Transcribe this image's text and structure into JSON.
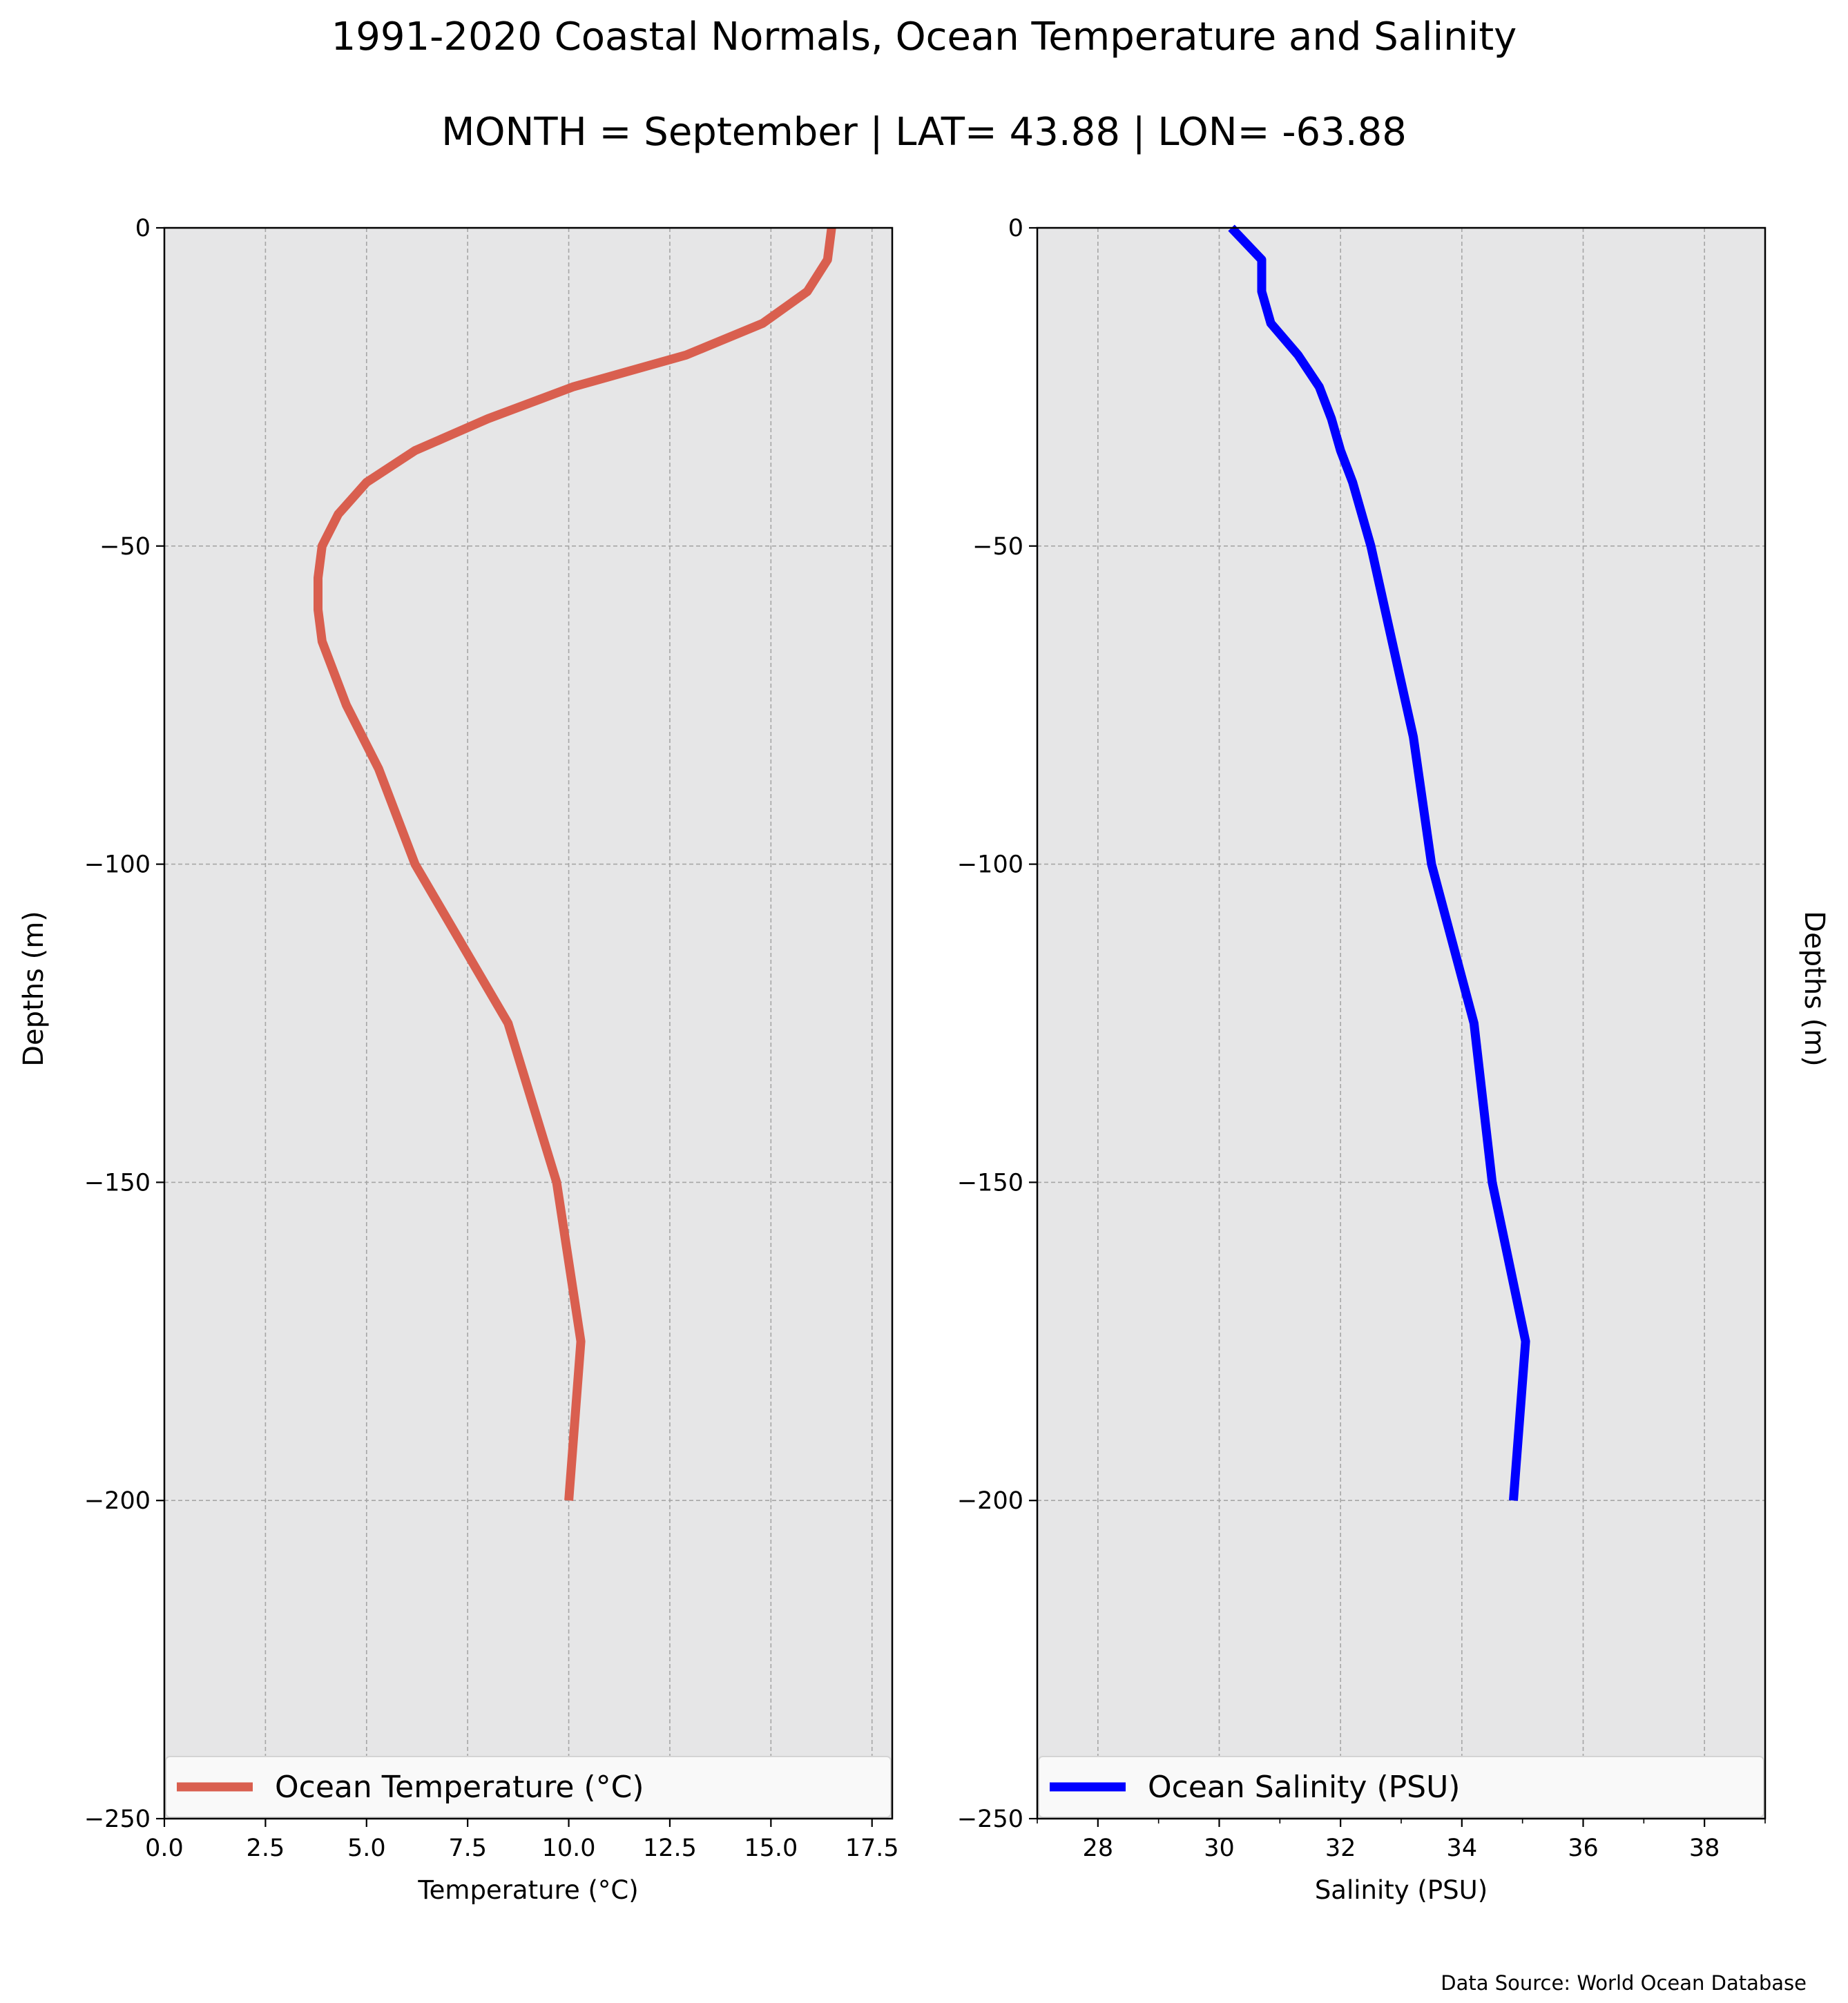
{
  "figure": {
    "title": "1991-2020 Coastal Normals, Ocean Temperature and Salinity",
    "subtitle": "MONTH = September | LAT= 43.88 | LON= -63.88",
    "source_note": "Data Source: World Ocean Database",
    "colors": {
      "panel_bg": "#e6e6e7",
      "grid": "#a6a6a6"
    }
  },
  "chart_data": [
    {
      "type": "line",
      "xlabel": "Temperature ($^\\circ$C)",
      "xlabel_display": "Temperature (°C)",
      "ylabel": "Depths (m)",
      "xlim": [
        0,
        18
      ],
      "ylim": [
        -250,
        0
      ],
      "xticks": [
        0.0,
        2.5,
        5.0,
        7.5,
        10.0,
        12.5,
        15.0,
        17.5
      ],
      "xtick_labels": [
        "0.0",
        "2.5",
        "5.0",
        "7.5",
        "10.0",
        "12.5",
        "15.0",
        "17.5"
      ],
      "yticks": [
        0,
        -50,
        -100,
        -150,
        -200,
        -250
      ],
      "ytick_labels": [
        "0",
        "−50",
        "−100",
        "−150",
        "−200",
        "−250"
      ],
      "grid": true,
      "legend": "bottom",
      "series": [
        {
          "name": "Ocean Temperature (°C)",
          "color": "#d95f4f",
          "x": [
            16.5,
            16.4,
            15.9,
            14.8,
            12.9,
            10.1,
            8.0,
            6.2,
            5.0,
            4.3,
            3.9,
            3.8,
            3.8,
            3.9,
            4.5,
            5.3,
            6.2,
            8.5,
            9.7,
            10.3,
            10.0
          ],
          "y": [
            0,
            -5,
            -10,
            -15,
            -20,
            -25,
            -30,
            -35,
            -40,
            -45,
            -50,
            -55,
            -60,
            -65,
            -75,
            -85,
            -100,
            -125,
            -150,
            -175,
            -200
          ]
        }
      ]
    },
    {
      "type": "line",
      "xlabel": "Salinity (PSU)",
      "ylabel": "Depths (m)",
      "xlim": [
        27,
        39
      ],
      "ylim": [
        -250,
        0
      ],
      "xticks": [
        28,
        30,
        32,
        34,
        36,
        38
      ],
      "xtick_labels": [
        "28",
        "30",
        "32",
        "34",
        "36",
        "38"
      ],
      "yticks": [
        0,
        -50,
        -100,
        -150,
        -200,
        -250
      ],
      "ytick_labels": [
        "0",
        "−50",
        "−100",
        "−150",
        "−200",
        "−250"
      ],
      "grid": true,
      "legend": "bottom",
      "series": [
        {
          "name": "Ocean Salinity (PSU)",
          "color": "#0000ff",
          "x": [
            30.2,
            30.7,
            30.7,
            30.85,
            31.3,
            31.65,
            31.85,
            32.0,
            32.2,
            32.35,
            32.5,
            32.85,
            33.2,
            33.5,
            34.2,
            34.5,
            35.05,
            34.85
          ],
          "y": [
            0,
            -5,
            -10,
            -15,
            -20,
            -25,
            -30,
            -35,
            -40,
            -45,
            -50,
            -65,
            -80,
            -100,
            -125,
            -150,
            -175,
            -200
          ]
        }
      ]
    }
  ]
}
